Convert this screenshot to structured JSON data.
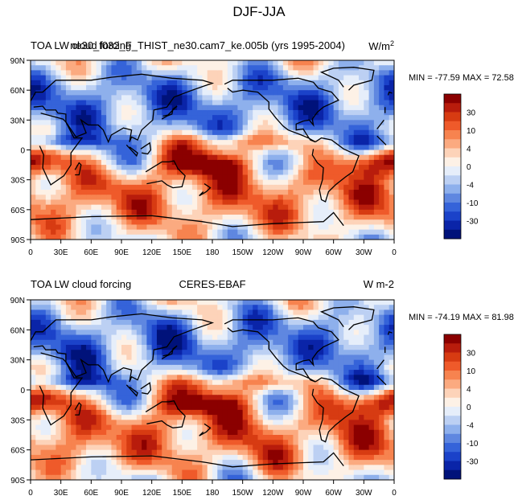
{
  "figure": {
    "title": "DJF-JJA"
  },
  "chart_data": [
    {
      "type": "heatmap",
      "title_left": "TOA LW cloud forcing",
      "title_center": "ne30_f032_F_THIST_ne30.cam7_ke.005b (yrs 1995-2004)",
      "units": "W/m",
      "units_superscript": "2",
      "stats": "MIN = -77.59 MAX =  72.58",
      "x_ticks": [
        "0",
        "30E",
        "60E",
        "90E",
        "120E",
        "150E",
        "180",
        "150W",
        "120W",
        "90W",
        "60W",
        "30W",
        "0"
      ],
      "y_ticks": [
        "90N",
        "60N",
        "30N",
        "0",
        "30S",
        "60S",
        "90S"
      ],
      "x_range": [
        0,
        360
      ],
      "y_range": [
        -90,
        90
      ],
      "colorbar_labels": [
        "30",
        "10",
        "4",
        "0",
        "-4",
        "-10",
        "-30"
      ],
      "colors": [
        "#8b0000",
        "#b81c0c",
        "#d73b12",
        "#ef5a2a",
        "#f7834f",
        "#fbaa80",
        "#fdd3b9",
        "#fdf1e6",
        "#e6eefa",
        "#bcd0f3",
        "#8eb0ec",
        "#5f87e0",
        "#3563d9",
        "#1b42c9",
        "#0a24a8",
        "#00127a"
      ]
    },
    {
      "type": "heatmap",
      "title_left": "TOA LW cloud forcing",
      "title_center": "CERES-EBAF",
      "units": "W m-2",
      "units_superscript": "",
      "stats": "MIN = -74.19 MAX =  81.98",
      "x_ticks": [
        "0",
        "30E",
        "60E",
        "90E",
        "120E",
        "150E",
        "180",
        "150W",
        "120W",
        "90W",
        "60W",
        "30W",
        "0"
      ],
      "y_ticks": [
        "90N",
        "60N",
        "30N",
        "0",
        "30S",
        "60S",
        "90S"
      ],
      "x_range": [
        0,
        360
      ],
      "y_range": [
        -90,
        90
      ],
      "colorbar_labels": [
        "30",
        "10",
        "4",
        "0",
        "-4",
        "-10",
        "-30"
      ],
      "colors": [
        "#8b0000",
        "#b81c0c",
        "#d73b12",
        "#ef5a2a",
        "#f7834f",
        "#fbaa80",
        "#fdd3b9",
        "#fdf1e6",
        "#e6eefa",
        "#bcd0f3",
        "#8eb0ec",
        "#5f87e0",
        "#3563d9",
        "#1b42c9",
        "#0a24a8",
        "#00127a"
      ]
    }
  ]
}
